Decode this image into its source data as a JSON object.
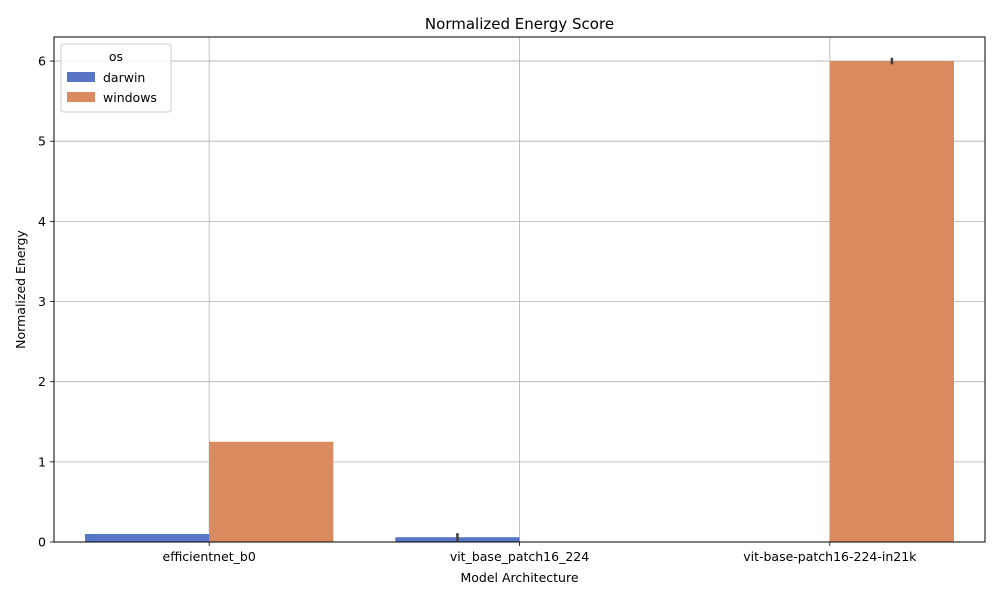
{
  "chart_data": {
    "type": "bar",
    "title": "Normalized Energy Score",
    "xlabel": "Model Architecture",
    "ylabel": "Normalized Energy",
    "categories": [
      "efficientnet_b0",
      "vit_base_patch16_224",
      "vit-base-patch16-224-in21k"
    ],
    "ylim": [
      0,
      6.3
    ],
    "yticks": [
      0,
      1,
      2,
      3,
      4,
      5,
      6
    ],
    "grid": true,
    "legend": {
      "title": "os",
      "placement": "top-left"
    },
    "series": [
      {
        "name": "darwin",
        "color": "#5975c6",
        "values": [
          0.1,
          0.06,
          null
        ],
        "error": [
          null,
          0.05,
          null
        ]
      },
      {
        "name": "windows",
        "color": "#d98b5f",
        "values": [
          1.25,
          null,
          6.0
        ],
        "error": [
          null,
          null,
          0.04
        ]
      }
    ]
  }
}
